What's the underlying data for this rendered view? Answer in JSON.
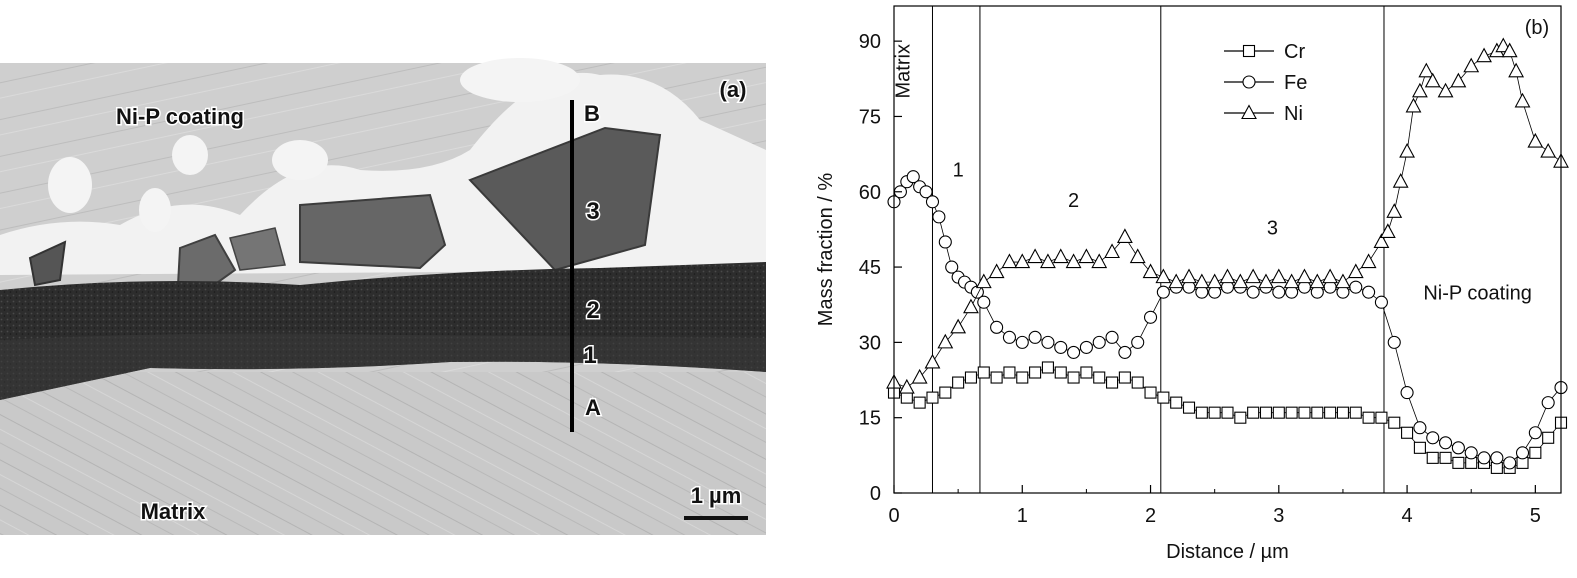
{
  "panel_a": {
    "panel_label": "(a)",
    "labels": {
      "coating": "Ni-P coating",
      "matrix": "Matrix",
      "point_b": "B",
      "point_a": "A",
      "zone_3": "3",
      "zone_2": "2",
      "zone_1": "1"
    },
    "scale_bar": "1 µm"
  },
  "chart_data": {
    "type": "scatter",
    "panel_label": "(b)",
    "xlabel": "Distance / µm",
    "ylabel": "Mass fraction / %",
    "xlim": [
      0,
      5.2
    ],
    "ylim": [
      0,
      97
    ],
    "x_ticks": [
      0,
      1,
      2,
      3,
      4,
      5
    ],
    "y_ticks": [
      0,
      15,
      30,
      45,
      60,
      75,
      90
    ],
    "grid": false,
    "legend_position": "top-center",
    "region_boundaries": [
      0.3,
      0.67,
      2.08,
      3.82
    ],
    "region_labels": [
      {
        "text": "Matrix",
        "x": 0.12,
        "y": 84,
        "rotate": true
      },
      {
        "text": "1",
        "x": 0.5,
        "y": 63
      },
      {
        "text": "2",
        "x": 1.4,
        "y": 57
      },
      {
        "text": "3",
        "x": 2.95,
        "y": 51.5
      },
      {
        "text": "Ni-P coating",
        "x": 4.55,
        "y": 38.5
      }
    ],
    "series": [
      {
        "name": "Cr",
        "marker": "square",
        "x": [
          0.0,
          0.1,
          0.2,
          0.3,
          0.4,
          0.5,
          0.6,
          0.7,
          0.8,
          0.9,
          1.0,
          1.1,
          1.2,
          1.3,
          1.4,
          1.5,
          1.6,
          1.7,
          1.8,
          1.9,
          2.0,
          2.1,
          2.2,
          2.3,
          2.4,
          2.5,
          2.6,
          2.7,
          2.8,
          2.9,
          3.0,
          3.1,
          3.2,
          3.3,
          3.4,
          3.5,
          3.6,
          3.7,
          3.8,
          3.9,
          4.0,
          4.1,
          4.2,
          4.3,
          4.4,
          4.5,
          4.6,
          4.7,
          4.8,
          4.9,
          5.0,
          5.1,
          5.2
        ],
        "values": [
          20,
          19,
          18,
          19,
          20,
          22,
          23,
          24,
          23,
          24,
          23,
          24,
          25,
          24,
          23,
          24,
          23,
          22,
          23,
          22,
          20,
          19,
          18,
          17,
          16,
          16,
          16,
          15,
          16,
          16,
          16,
          16,
          16,
          16,
          16,
          16,
          16,
          15,
          15,
          14,
          12,
          9,
          7,
          7,
          6,
          6,
          6,
          5,
          5,
          6,
          8,
          11,
          14
        ]
      },
      {
        "name": "Fe",
        "marker": "circle",
        "x": [
          0.0,
          0.05,
          0.1,
          0.15,
          0.2,
          0.25,
          0.3,
          0.35,
          0.4,
          0.45,
          0.5,
          0.55,
          0.6,
          0.65,
          0.7,
          0.8,
          0.9,
          1.0,
          1.1,
          1.2,
          1.3,
          1.4,
          1.5,
          1.6,
          1.7,
          1.8,
          1.9,
          2.0,
          2.1,
          2.2,
          2.3,
          2.4,
          2.5,
          2.6,
          2.7,
          2.8,
          2.9,
          3.0,
          3.1,
          3.2,
          3.3,
          3.4,
          3.5,
          3.6,
          3.7,
          3.8,
          3.9,
          4.0,
          4.1,
          4.2,
          4.3,
          4.4,
          4.5,
          4.6,
          4.7,
          4.8,
          4.9,
          5.0,
          5.1,
          5.2
        ],
        "values": [
          58,
          60,
          62,
          63,
          61,
          60,
          58,
          55,
          50,
          45,
          43,
          42,
          41,
          40,
          38,
          33,
          31,
          30,
          31,
          30,
          29,
          28,
          29,
          30,
          31,
          28,
          30,
          35,
          40,
          41,
          41,
          40,
          40,
          41,
          41,
          40,
          41,
          40,
          40,
          41,
          40,
          41,
          40,
          41,
          40,
          38,
          30,
          20,
          13,
          11,
          10,
          9,
          8,
          7,
          7,
          6,
          8,
          12,
          18,
          21
        ]
      },
      {
        "name": "Ni",
        "marker": "triangle",
        "x": [
          0.0,
          0.1,
          0.2,
          0.3,
          0.4,
          0.5,
          0.6,
          0.7,
          0.8,
          0.9,
          1.0,
          1.1,
          1.2,
          1.3,
          1.4,
          1.5,
          1.6,
          1.7,
          1.8,
          1.9,
          2.0,
          2.1,
          2.2,
          2.3,
          2.4,
          2.5,
          2.6,
          2.7,
          2.8,
          2.9,
          3.0,
          3.1,
          3.2,
          3.3,
          3.4,
          3.5,
          3.6,
          3.7,
          3.8,
          3.85,
          3.9,
          3.95,
          4.0,
          4.05,
          4.1,
          4.15,
          4.2,
          4.3,
          4.4,
          4.5,
          4.6,
          4.7,
          4.75,
          4.8,
          4.85,
          4.9,
          5.0,
          5.1,
          5.2
        ],
        "values": [
          22,
          21,
          23,
          26,
          30,
          33,
          37,
          42,
          44,
          46,
          46,
          47,
          46,
          47,
          46,
          47,
          46,
          48,
          51,
          47,
          44,
          43,
          42,
          43,
          42,
          42,
          43,
          42,
          43,
          42,
          43,
          42,
          43,
          42,
          43,
          42,
          44,
          46,
          50,
          52,
          56,
          62,
          68,
          77,
          80,
          84,
          82,
          80,
          82,
          85,
          87,
          88,
          89,
          88,
          84,
          78,
          70,
          68,
          66
        ]
      }
    ]
  }
}
